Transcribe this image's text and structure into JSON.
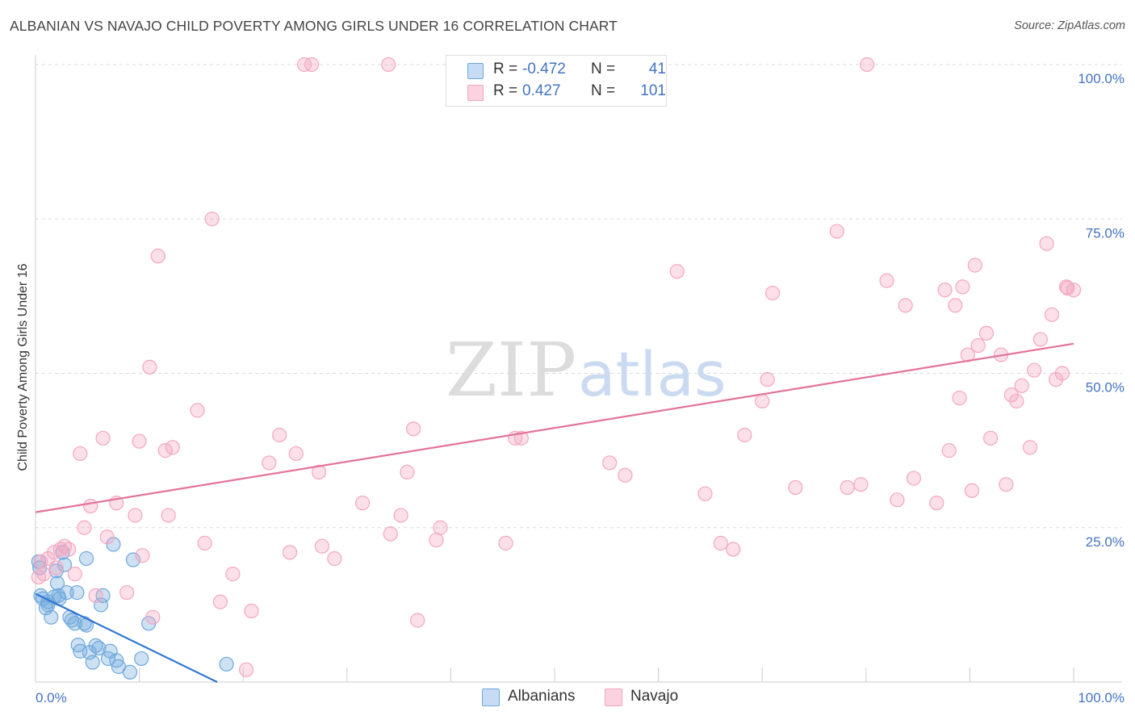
{
  "header": {
    "title": "ALBANIAN VS NAVAJO CHILD POVERTY AMONG GIRLS UNDER 16 CORRELATION CHART",
    "source": "Source: ZipAtlas.com"
  },
  "watermark": {
    "zip": "ZIP",
    "atlas": "atlas"
  },
  "legend": {
    "rows": [
      {
        "r_label": "R =",
        "r_value": "-0.472",
        "n_label": "N =",
        "n_value": "41",
        "color": "#6fa8dc"
      },
      {
        "r_label": "R =",
        "r_value": "0.427",
        "n_label": "N =",
        "n_value": "101",
        "color": "#f4a6c0"
      }
    ]
  },
  "bottom_legend": {
    "albanians": "Albanians",
    "navajo": "Navajo"
  },
  "chart_data": {
    "type": "scatter",
    "title": "ALBANIAN VS NAVAJO CHILD POVERTY AMONG GIRLS UNDER 16 CORRELATION CHART",
    "xlabel": "",
    "ylabel": "Child Poverty Among Girls Under 16",
    "xlim": [
      0,
      100
    ],
    "ylim": [
      0,
      100
    ],
    "x_tick_labels": [
      "0.0%",
      "100.0%"
    ],
    "y_tick_labels": [
      "25.0%",
      "50.0%",
      "75.0%",
      "100.0%"
    ],
    "y_ticks": [
      25,
      50,
      75,
      100
    ],
    "grid": true,
    "legend_position": "top-center",
    "series": [
      {
        "name": "Albanians",
        "color": "#6fa8dc",
        "line_color": "#2f75d1",
        "trend": {
          "x": [
            0,
            17.5
          ],
          "y": [
            14.3,
            0
          ]
        },
        "points": [
          [
            0.3,
            19.5
          ],
          [
            0.4,
            18.5
          ],
          [
            0.5,
            14.0
          ],
          [
            0.7,
            13.5
          ],
          [
            1.0,
            12.0
          ],
          [
            1.2,
            12.5
          ],
          [
            1.5,
            10.5
          ],
          [
            1.8,
            13.8
          ],
          [
            2.0,
            18.0
          ],
          [
            2.1,
            16.0
          ],
          [
            2.3,
            13.5
          ],
          [
            2.6,
            21.0
          ],
          [
            2.8,
            19.0
          ],
          [
            3.0,
            14.5
          ],
          [
            3.3,
            10.5
          ],
          [
            3.5,
            10.0
          ],
          [
            3.8,
            9.5
          ],
          [
            4.0,
            14.5
          ],
          [
            4.1,
            6.0
          ],
          [
            4.3,
            5.0
          ],
          [
            4.7,
            9.5
          ],
          [
            4.9,
            9.2
          ],
          [
            4.9,
            20.0
          ],
          [
            5.2,
            4.8
          ],
          [
            5.5,
            3.2
          ],
          [
            5.8,
            5.9
          ],
          [
            6.1,
            5.5
          ],
          [
            6.3,
            12.5
          ],
          [
            6.5,
            14.0
          ],
          [
            7.0,
            3.8
          ],
          [
            7.2,
            5.0
          ],
          [
            7.5,
            22.3
          ],
          [
            7.8,
            3.5
          ],
          [
            8.0,
            2.5
          ],
          [
            9.1,
            1.6
          ],
          [
            9.4,
            19.8
          ],
          [
            10.2,
            3.8
          ],
          [
            10.9,
            9.5
          ],
          [
            18.4,
            2.9
          ],
          [
            1.2,
            13.0
          ],
          [
            2.2,
            14.0
          ]
        ]
      },
      {
        "name": "Navajo",
        "color": "#f4a6c0",
        "line_color": "#e3739b",
        "trend": {
          "x": [
            0,
            100
          ],
          "y": [
            27.5,
            54.8
          ]
        },
        "points": [
          [
            0.3,
            17.0
          ],
          [
            0.5,
            19.5
          ],
          [
            0.8,
            17.5
          ],
          [
            1.2,
            20.0
          ],
          [
            1.8,
            21.0
          ],
          [
            2.0,
            18.5
          ],
          [
            2.4,
            21.5
          ],
          [
            2.8,
            22.0
          ],
          [
            3.2,
            21.5
          ],
          [
            3.8,
            17.5
          ],
          [
            4.3,
            37.0
          ],
          [
            4.7,
            25.0
          ],
          [
            5.3,
            28.5
          ],
          [
            5.8,
            14.0
          ],
          [
            6.5,
            39.5
          ],
          [
            6.9,
            23.5
          ],
          [
            7.8,
            29.0
          ],
          [
            8.8,
            14.5
          ],
          [
            9.6,
            27.0
          ],
          [
            10.0,
            39.0
          ],
          [
            10.3,
            20.5
          ],
          [
            11.0,
            51.0
          ],
          [
            11.3,
            10.5
          ],
          [
            11.8,
            69.0
          ],
          [
            12.5,
            37.5
          ],
          [
            12.8,
            27.0
          ],
          [
            13.2,
            38.0
          ],
          [
            15.6,
            44.0
          ],
          [
            16.3,
            22.5
          ],
          [
            17.0,
            75.0
          ],
          [
            17.8,
            13.0
          ],
          [
            19.0,
            17.5
          ],
          [
            20.3,
            2.0
          ],
          [
            20.8,
            11.5
          ],
          [
            22.5,
            35.5
          ],
          [
            23.5,
            40.0
          ],
          [
            24.5,
            21.0
          ],
          [
            25.1,
            37.0
          ],
          [
            25.9,
            100.0
          ],
          [
            26.6,
            100.0
          ],
          [
            27.3,
            34.0
          ],
          [
            27.6,
            22.0
          ],
          [
            28.8,
            20.0
          ],
          [
            31.5,
            29.0
          ],
          [
            34.0,
            100.0
          ],
          [
            34.2,
            24.0
          ],
          [
            35.2,
            27.0
          ],
          [
            35.8,
            34.0
          ],
          [
            36.4,
            41.0
          ],
          [
            36.8,
            10.0
          ],
          [
            38.6,
            23.0
          ],
          [
            39.0,
            25.0
          ],
          [
            45.3,
            22.5
          ],
          [
            46.2,
            39.5
          ],
          [
            46.8,
            39.5
          ],
          [
            55.3,
            35.5
          ],
          [
            56.8,
            33.5
          ],
          [
            61.8,
            66.5
          ],
          [
            64.5,
            30.5
          ],
          [
            66.0,
            22.5
          ],
          [
            67.2,
            21.5
          ],
          [
            68.3,
            40.0
          ],
          [
            70.0,
            45.5
          ],
          [
            70.5,
            49.0
          ],
          [
            71.0,
            63.0
          ],
          [
            73.2,
            31.5
          ],
          [
            77.2,
            73.0
          ],
          [
            78.2,
            31.5
          ],
          [
            79.5,
            32.0
          ],
          [
            80.1,
            100.0
          ],
          [
            82.0,
            65.0
          ],
          [
            83.0,
            29.5
          ],
          [
            83.8,
            61.0
          ],
          [
            84.6,
            33.0
          ],
          [
            86.8,
            29.0
          ],
          [
            87.6,
            63.5
          ],
          [
            88.0,
            37.5
          ],
          [
            88.6,
            61.0
          ],
          [
            89.0,
            46.0
          ],
          [
            89.3,
            64.0
          ],
          [
            89.8,
            53.0
          ],
          [
            90.2,
            31.0
          ],
          [
            90.5,
            67.5
          ],
          [
            90.8,
            54.5
          ],
          [
            91.6,
            56.5
          ],
          [
            92.0,
            39.5
          ],
          [
            93.0,
            53.0
          ],
          [
            93.5,
            32.0
          ],
          [
            94.0,
            46.5
          ],
          [
            94.5,
            45.5
          ],
          [
            95.0,
            48.0
          ],
          [
            95.8,
            38.0
          ],
          [
            96.2,
            50.5
          ],
          [
            96.8,
            55.5
          ],
          [
            97.4,
            71.0
          ],
          [
            97.9,
            59.5
          ],
          [
            98.3,
            49.0
          ],
          [
            98.9,
            50.0
          ],
          [
            99.3,
            64.0
          ],
          [
            100.0,
            63.5
          ],
          [
            99.4,
            63.8
          ]
        ]
      }
    ]
  }
}
